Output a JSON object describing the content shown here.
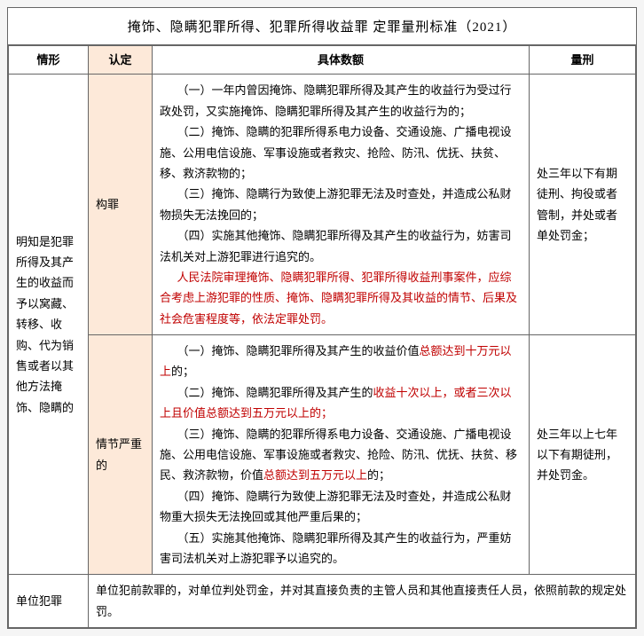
{
  "title": "掩饰、隐瞒犯罪所得、犯罪所得收益罪 定罪量刑标准（2021）",
  "headers": {
    "situation": "情形",
    "identify": "认定",
    "detail": "具体数额",
    "penalty": "量刑"
  },
  "row1": {
    "situation": "明知是犯罪所得及其产生的收益而予以窝藏、转移、收购、代为销售或者以其他方法掩饰、隐瞒的",
    "identify": "构罪",
    "detail_items": {
      "p1": "（一）一年内曾因掩饰、隐瞒犯罪所得及其产生的收益行为受过行政处罚，又实施掩饰、隐瞒犯罪所得及其产生的收益行为的；",
      "p2": "（二）掩饰、隐瞒的犯罪所得系电力设备、交通设施、广播电视设施、公用电信设施、军事设施或者救灾、抢险、防汛、优抚、扶贫、移、救济款物的；",
      "p3": "（三）掩饰、隐瞒行为致使上游犯罪无法及时查处，并造成公私财物损失无法挽回的；",
      "p4": "（四）实施其他掩饰、隐瞒犯罪所得及其产生的收益行为，妨害司法机关对上游犯罪进行追究的。",
      "p5": "人民法院审理掩饰、隐瞒犯罪所得、犯罪所得收益刑事案件，应综合考虑上游犯罪的性质、掩饰、隐瞒犯罪所得及其收益的情节、后果及社会危害程度等，依法定罪处罚。"
    },
    "penalty": "处三年以下有期徒刑、拘役或者管制，并处或者单处罚金；"
  },
  "row2": {
    "identify": "情节严重的",
    "detail_items": {
      "p1a": "（一）掩饰、隐瞒犯罪所得及其产生的收益价值",
      "p1b": "总额达到十万元以上",
      "p1c": "的；",
      "p2a": "（二）掩饰、隐瞒犯罪所得及其产生的",
      "p2b": "收益十次以上，或者三次以上且价值总额达到五万元以上的；",
      "p3a": "（三）掩饰、隐瞒的犯罪所得系电力设备、交通设施、广播电视设施、公用电信设施、军事设施或者救灾、抢险、防汛、优抚、扶贫、移民、救济款物，价值",
      "p3b": "总额达到五万元以上",
      "p3c": "的；",
      "p4": "（四）掩饰、隐瞒行为致使上游犯罪无法及时查处，并造成公私财物重大损失无法挽回或其他严重后果的；",
      "p5": "（五）实施其他掩饰、隐瞒犯罪所得及其产生的收益行为，严重妨害司法机关对上游犯罪予以追究的。"
    },
    "penalty": "处三年以上七年以下有期徒刑，并处罚金。"
  },
  "row3": {
    "situation": "单位犯罪",
    "detail": "单位犯前款罪的，对单位判处罚金，并对其直接负责的主管人员和其他直接责任人员，依照前款的规定处罚。"
  },
  "colors": {
    "highlight_bg": "#fde9d9",
    "emphasis_text": "#c00000",
    "border": "#666666"
  }
}
